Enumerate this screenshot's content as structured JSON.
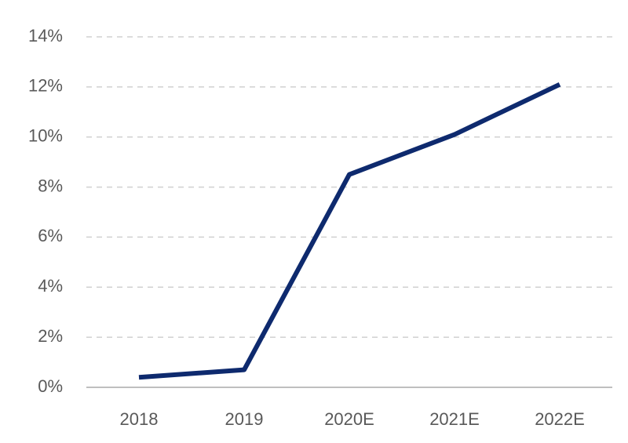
{
  "chart_data": {
    "type": "line",
    "categories": [
      "2018",
      "2019",
      "2020E",
      "2021E",
      "2022E"
    ],
    "series": [
      {
        "color": "#0e2a6e",
        "values": [
          0.4,
          0.7,
          8.5,
          10.1,
          12.1
        ]
      }
    ],
    "ylim": [
      0,
      14
    ],
    "yticks": [
      {
        "value": 0,
        "label": "0%"
      },
      {
        "value": 2,
        "label": "2%"
      },
      {
        "value": 4,
        "label": "4%"
      },
      {
        "value": 6,
        "label": "6%"
      },
      {
        "value": 8,
        "label": "8%"
      },
      {
        "value": 10,
        "label": "10%"
      },
      {
        "value": 12,
        "label": "12%"
      },
      {
        "value": 14,
        "label": "14%"
      }
    ],
    "grid": true
  }
}
